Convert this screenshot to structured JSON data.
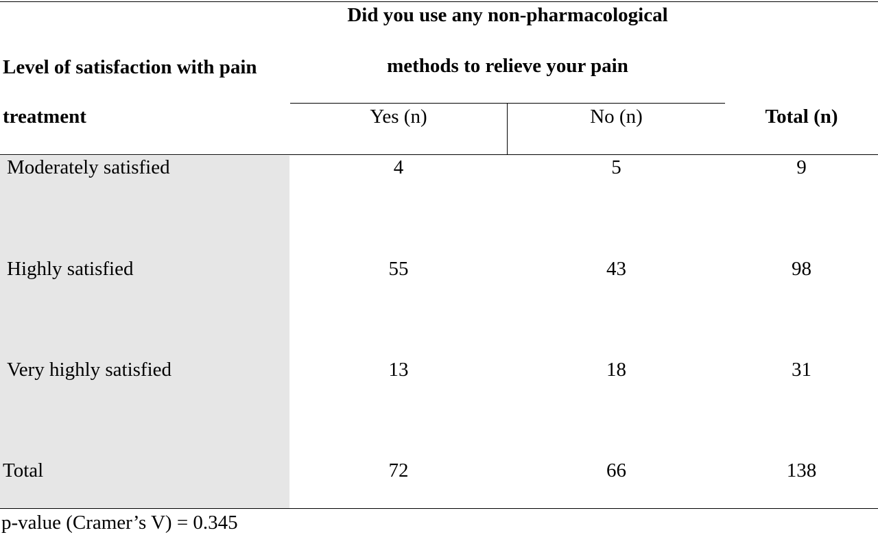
{
  "table": {
    "row_header_line1": "Level of satisfaction with pain",
    "row_header_line2": "treatment",
    "group_header_line1": "Did you use any non-pharmacological",
    "group_header_line2": "methods to relieve your pain",
    "col_yes": "Yes (n)",
    "col_no": "No (n)",
    "col_total": "Total (n)",
    "rows": [
      {
        "label": "Moderately satisfied",
        "yes": "4",
        "no": "5",
        "total": "9"
      },
      {
        "label": "Highly satisfied",
        "yes": "55",
        "no": "43",
        "total": "98"
      },
      {
        "label": "Very highly satisfied",
        "yes": "13",
        "no": "18",
        "total": "31"
      },
      {
        "label": "Total",
        "yes": "72",
        "no": "66",
        "total": "138"
      }
    ],
    "footnote": "p-value (Cramer’s V) = 0.345"
  }
}
